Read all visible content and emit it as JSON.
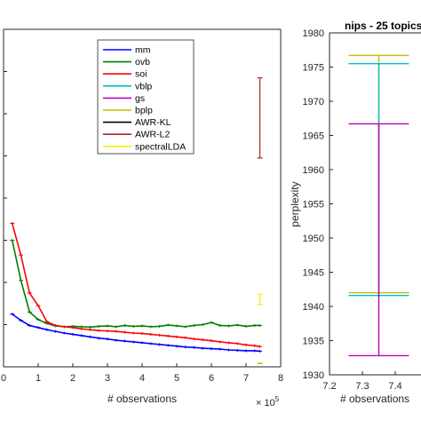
{
  "chart_data": [
    {
      "type": "line",
      "title": "",
      "xlabel": "# observations",
      "x_exponent_label": "× 10",
      "x_exponent_power": "5",
      "ylabel": "",
      "xlim": [
        0,
        8
      ],
      "ylim": [
        1930,
        2010
      ],
      "xticks": [
        "0",
        "1",
        "2",
        "3",
        "4",
        "5",
        "6",
        "7",
        "8"
      ],
      "grid": false,
      "legend_position": "top-right",
      "legend": [
        "mm",
        "ovb",
        "soi",
        "vblp",
        "gs",
        "bplp",
        "AWR-KL",
        "AWR-L2",
        "spectralLDA"
      ],
      "colors": {
        "mm": "#0000ff",
        "ovb": "#008000",
        "soi": "#ff0000",
        "vblp": "#00bfbf",
        "gs": "#bf00bf",
        "bplp": "#bfbf00",
        "AWR-KL": "#000000",
        "AWR-L2": "#a52a2a",
        "spectralLDA": "#f2f200"
      },
      "series": [
        {
          "name": "mm",
          "x": [
            0.25,
            0.5,
            0.75,
            1.0,
            1.25,
            1.5,
            1.75,
            2.0,
            2.25,
            2.5,
            2.75,
            3.0,
            3.25,
            3.5,
            3.75,
            4.0,
            4.25,
            4.5,
            4.75,
            5.0,
            5.25,
            5.5,
            5.75,
            6.0,
            6.25,
            6.5,
            6.75,
            7.0,
            7.25,
            7.4
          ],
          "y": [
            1942.5,
            1941.0,
            1939.8,
            1939.3,
            1938.8,
            1938.4,
            1938.0,
            1937.7,
            1937.4,
            1937.1,
            1936.8,
            1936.6,
            1936.3,
            1936.1,
            1935.9,
            1935.7,
            1935.5,
            1935.3,
            1935.1,
            1934.9,
            1934.7,
            1934.6,
            1934.4,
            1934.3,
            1934.2,
            1934.0,
            1933.9,
            1933.8,
            1933.8,
            1933.7
          ]
        },
        {
          "name": "ovb",
          "x": [
            0.25,
            0.5,
            0.75,
            1.0,
            1.25,
            1.5,
            1.75,
            2.0,
            2.25,
            2.5,
            2.75,
            3.0,
            3.25,
            3.5,
            3.75,
            4.0,
            4.25,
            4.5,
            4.75,
            5.0,
            5.25,
            5.5,
            5.75,
            6.0,
            6.25,
            6.5,
            6.75,
            7.0,
            7.25,
            7.4
          ],
          "y": [
            1960.0,
            1950.5,
            1943.0,
            1941.2,
            1940.3,
            1939.7,
            1939.5,
            1939.6,
            1939.5,
            1939.4,
            1939.6,
            1939.7,
            1939.5,
            1939.8,
            1939.6,
            1939.7,
            1939.5,
            1939.6,
            1939.9,
            1939.7,
            1939.5,
            1939.8,
            1940.0,
            1940.5,
            1939.8,
            1939.7,
            1939.9,
            1939.6,
            1939.8,
            1939.8
          ]
        },
        {
          "name": "soi",
          "x": [
            0.25,
            0.5,
            0.75,
            1.0,
            1.25,
            1.5,
            1.75,
            2.0,
            2.25,
            2.5,
            2.75,
            3.0,
            3.25,
            3.5,
            3.75,
            4.0,
            4.25,
            4.5,
            4.75,
            5.0,
            5.25,
            5.5,
            5.75,
            6.0,
            6.25,
            6.5,
            6.75,
            7.0,
            7.25,
            7.4
          ],
          "y": [
            1964.0,
            1956.5,
            1947.5,
            1944.5,
            1940.7,
            1939.8,
            1939.5,
            1939.3,
            1939.0,
            1938.8,
            1938.6,
            1938.5,
            1938.4,
            1938.2,
            1938.0,
            1937.9,
            1937.7,
            1937.5,
            1937.3,
            1937.1,
            1936.9,
            1936.6,
            1936.4,
            1936.2,
            1935.9,
            1935.7,
            1935.5,
            1935.2,
            1935.0,
            1934.8
          ]
        },
        {
          "name": "AWR-L2",
          "type": "errorbar",
          "x": [
            7.4
          ],
          "y": [
            1989.0
          ],
          "err_low": [
            1979.5
          ],
          "err_high": [
            1998.5
          ]
        },
        {
          "name": "spectralLDA",
          "type": "errorbar",
          "x": [
            7.4
          ],
          "y": [
            1946.0
          ],
          "err_low": [
            1944.8
          ],
          "err_high": [
            1947.2
          ]
        },
        {
          "name": "bplp",
          "type": "marker",
          "x": [
            7.4
          ],
          "y": [
            1930.8
          ]
        }
      ]
    },
    {
      "type": "errorbar",
      "title": "nips - 25 topics",
      "xlabel": "# observations",
      "x_exponent_label": "× 10",
      "x_exponent_power": "5",
      "ylabel": "perplexity",
      "xlim": [
        7.2,
        7.45
      ],
      "ylim": [
        1930,
        1980
      ],
      "xticks": [
        "7.2",
        "7.3",
        "7.4"
      ],
      "yticks": [
        "1930",
        "1935",
        "1940",
        "1945",
        "1950",
        "1955",
        "1960",
        "1965",
        "1970",
        "1975",
        "1980"
      ],
      "grid": false,
      "series": [
        {
          "name": "bplp",
          "x": 7.35,
          "low": 1942.0,
          "high": 1976.7
        },
        {
          "name": "vblp",
          "x": 7.35,
          "low": 1941.6,
          "high": 1975.5
        },
        {
          "name": "gs",
          "x": 7.35,
          "low": 1932.8,
          "high": 1966.7
        }
      ]
    }
  ]
}
